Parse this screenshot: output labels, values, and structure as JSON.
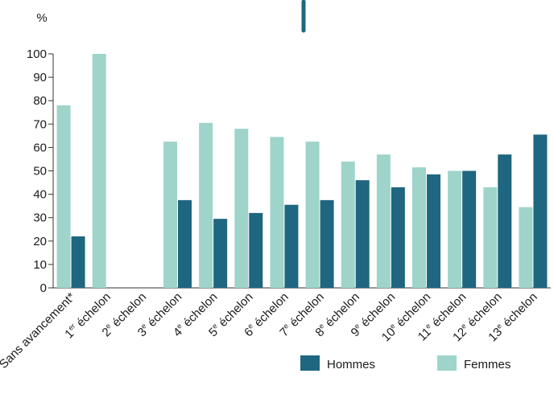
{
  "chart_data": {
    "type": "bar",
    "ylabel": "%",
    "ylim": [
      0,
      100
    ],
    "yticks": [
      0,
      10,
      20,
      30,
      40,
      50,
      60,
      70,
      80,
      90,
      100
    ],
    "grid": false,
    "legend_position": "bottom-right",
    "categories": [
      {
        "main": "Sans avancement*",
        "sup": "",
        "rest": ""
      },
      {
        "main": "1",
        "sup": "er",
        "rest": " échelon"
      },
      {
        "main": "2",
        "sup": "e",
        "rest": " échelon"
      },
      {
        "main": "3",
        "sup": "e",
        "rest": " échelon"
      },
      {
        "main": "4",
        "sup": "e",
        "rest": " échelon"
      },
      {
        "main": "5",
        "sup": "e",
        "rest": " échelon"
      },
      {
        "main": "6",
        "sup": "e",
        "rest": " échelon"
      },
      {
        "main": "7",
        "sup": "e",
        "rest": " échelon"
      },
      {
        "main": "8",
        "sup": "e",
        "rest": " échelon"
      },
      {
        "main": "9",
        "sup": "e",
        "rest": " échelon"
      },
      {
        "main": "10",
        "sup": "e",
        "rest": " échelon"
      },
      {
        "main": "11",
        "sup": "e",
        "rest": " échelon"
      },
      {
        "main": "12",
        "sup": "e",
        "rest": " échelon"
      },
      {
        "main": "13",
        "sup": "e",
        "rest": " échelon"
      }
    ],
    "series": [
      {
        "name": "Femmes",
        "color": "#9ed4c9",
        "values": [
          78,
          100,
          null,
          62.5,
          70.5,
          68,
          64.5,
          62.5,
          54,
          57,
          51.5,
          50,
          43,
          34.5
        ]
      },
      {
        "name": "Hommes",
        "color": "#1f6680",
        "values": [
          22,
          0,
          null,
          37.5,
          29.5,
          32,
          35.5,
          37.5,
          46,
          43,
          48.5,
          50,
          57,
          65.5
        ]
      }
    ],
    "legend": [
      {
        "name": "Hommes",
        "color": "#1f6680"
      },
      {
        "name": "Femmes",
        "color": "#9ed4c9"
      }
    ]
  },
  "decor": {
    "accent_color": "#1f6680"
  }
}
